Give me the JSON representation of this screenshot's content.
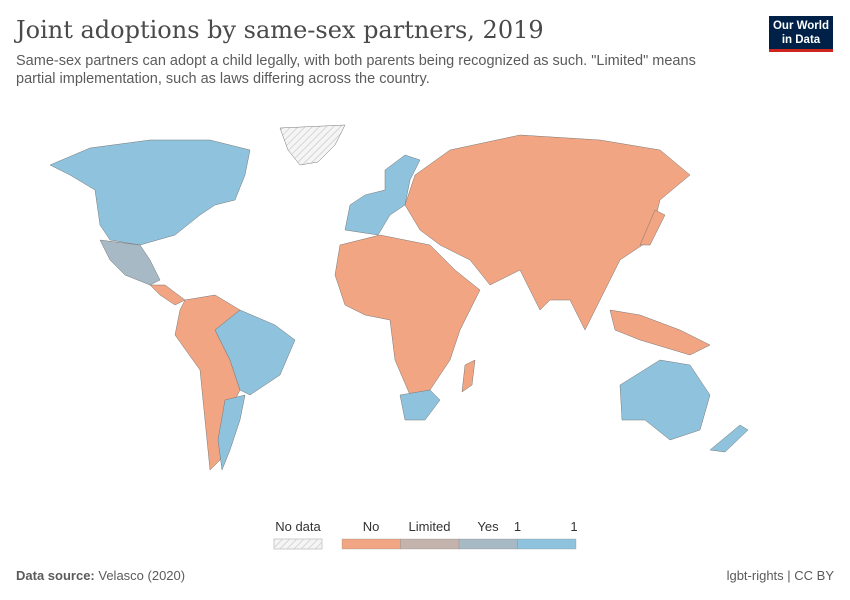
{
  "header": {
    "title": "Joint adoptions by same-sex partners, 2019",
    "subtitle": "Same-sex partners can adopt a child legally, with both parents being recognized as such. \"Limited\" means partial implementation, such as laws differing across the country.",
    "logo": "Our World in Data"
  },
  "legend": {
    "no_data": "No data",
    "items": [
      {
        "label": "No",
        "color": "#f2a582"
      },
      {
        "label": "Limited",
        "color": "#c4b3ad"
      },
      {
        "label": "Yes",
        "color": "#a6b9c5"
      },
      {
        "label": "1",
        "color": "#8fc3dd"
      }
    ],
    "end_label": "1"
  },
  "colors": {
    "no": "#f2a582",
    "limited": "#c4b3ad",
    "yes": "#a6b9c5",
    "full": "#8fc3dd",
    "no_data": "#e8e8e8"
  },
  "footer": {
    "source_label": "Data source:",
    "source": "Velasco (2020)",
    "license": "lgbt-rights | CC BY"
  }
}
